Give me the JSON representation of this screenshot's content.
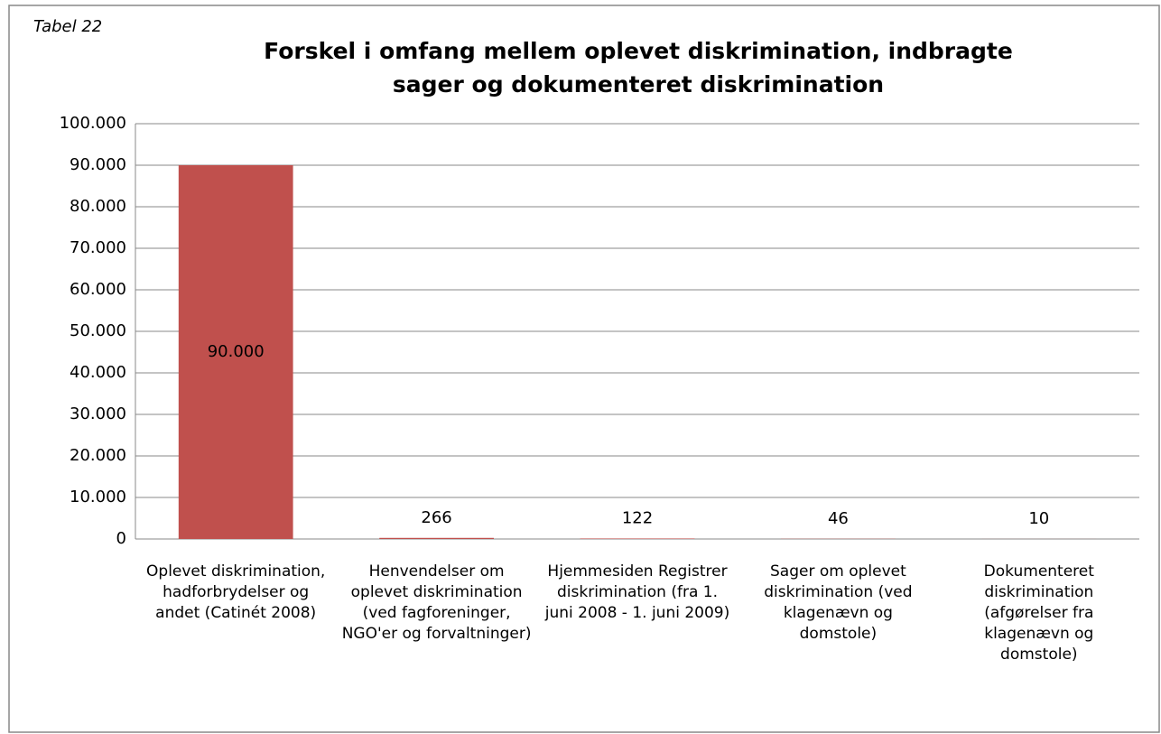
{
  "chart_data": {
    "type": "bar",
    "annotation": "Tabel 22",
    "title": "Forskel i omfang mellem oplevet diskrimination, indbragte sager og dokumenteret diskrimination",
    "categories": [
      "Oplevet diskrimination, hadforbrydelser og andet (Catinét 2008)",
      "Henvendelser om oplevet diskrimination (ved fagforeninger, NGO'er og forvaltninger)",
      "Hjemmesiden Registrer diskrimination (fra 1. juni 2008 - 1. juni 2009)",
      "Sager om oplevet diskrimination (ved klagenævn og domstole)",
      "Dokumenteret diskrimination (afgørelser fra klagenævn og domstole)"
    ],
    "values": [
      90000,
      266,
      122,
      46,
      10
    ],
    "value_labels": [
      "90.000",
      "266",
      "122",
      "46",
      "10"
    ],
    "color": "#c0504d",
    "ylim": [
      0,
      100000
    ],
    "yticks": [
      0,
      {
        "value": 10000,
        "label": "10.000"
      },
      {
        "value": 20000,
        "label": "20.000"
      },
      {
        "value": 30000,
        "label": "30.000"
      },
      {
        "value": 40000,
        "label": "40.000"
      },
      {
        "value": 50000,
        "label": "50.000"
      },
      {
        "value": 60000,
        "label": "60.000"
      },
      {
        "value": 70000,
        "label": "70.000"
      },
      {
        "value": 80000,
        "label": "80.000"
      },
      {
        "value": 90000,
        "label": "90.000"
      },
      {
        "value": 100000,
        "label": "100.000"
      }
    ],
    "grid": true
  }
}
